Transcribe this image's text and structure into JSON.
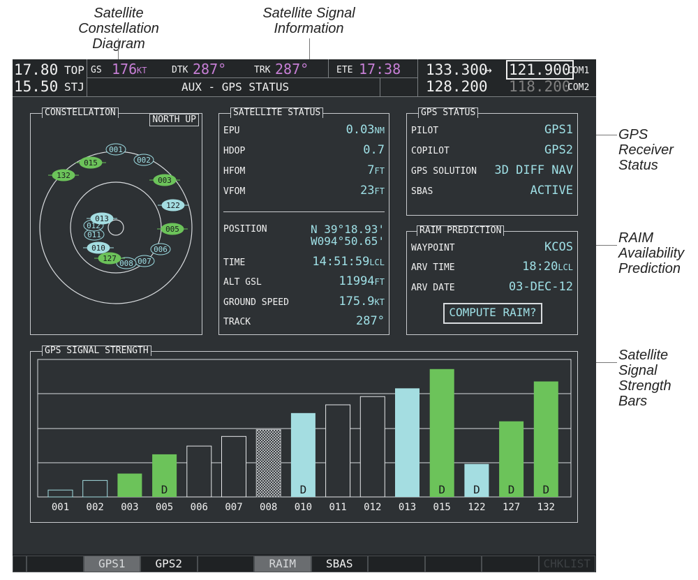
{
  "callouts": {
    "constellation": [
      "Satellite Constellation",
      "Diagram"
    ],
    "signal_info": [
      "Satellite Signal",
      "Information"
    ],
    "receiver": [
      "GPS",
      "Receiver",
      "Status"
    ],
    "raim": [
      "RAIM",
      "Availability",
      "Prediction"
    ],
    "bars": [
      "Satellite",
      "Signal",
      "Strength",
      "Bars"
    ]
  },
  "topbar": {
    "nav_freq_active": "17.80",
    "nav_freq_standby": "15.50",
    "nav_id_active": "TOP",
    "nav_id_standby": "STJ",
    "gs_label": "GS",
    "gs_value": "176",
    "gs_unit": "KT",
    "dtk_label": "DTK",
    "dtk_value": "287°",
    "trk_label": "TRK",
    "trk_value": "287°",
    "ete_label": "ETE",
    "ete_value": "17:38",
    "page_title": "AUX - GPS STATUS",
    "com_active_1": "133.300",
    "com_swap_symbol": "↔",
    "com_standby_1": "121.900",
    "com1_label": "COM1",
    "com_active_2": "128.200",
    "com_standby_2": "118.200",
    "com2_label": "COM2"
  },
  "constellation": {
    "title": "CONSTELLATION",
    "north_up": "NORTH UP",
    "satellites": [
      {
        "id": "001",
        "state": "outline"
      },
      {
        "id": "002",
        "state": "outline"
      },
      {
        "id": "003",
        "state": "green"
      },
      {
        "id": "005",
        "state": "green"
      },
      {
        "id": "006",
        "state": "outline"
      },
      {
        "id": "007",
        "state": "outline"
      },
      {
        "id": "008",
        "state": "outline"
      },
      {
        "id": "010",
        "state": "cyan"
      },
      {
        "id": "011",
        "state": "outline"
      },
      {
        "id": "012",
        "state": "outline"
      },
      {
        "id": "013",
        "state": "cyan"
      },
      {
        "id": "015",
        "state": "green"
      },
      {
        "id": "122",
        "state": "cyan"
      },
      {
        "id": "127",
        "state": "green"
      },
      {
        "id": "132",
        "state": "green"
      }
    ]
  },
  "satellite_status": {
    "title": "SATELLITE STATUS",
    "epu_label": "EPU",
    "epu_value": "0.03",
    "epu_unit": "NM",
    "hdop_label": "HDOP",
    "hdop_value": "0.7",
    "hfom_label": "HFOM",
    "hfom_value": "7",
    "hfom_unit": "FT",
    "vfom_label": "VFOM",
    "vfom_value": "23",
    "vfom_unit": "FT",
    "position_label": "POSITION",
    "position_lat": "N 39°18.93'",
    "position_lon": "W094°50.65'",
    "time_label": "TIME",
    "time_value": "14:51:59",
    "time_unit": "LCL",
    "alt_label": "ALT GSL",
    "alt_value": "11994",
    "alt_unit": "FT",
    "gs_label": "GROUND SPEED",
    "gs_value": "175.9",
    "gs_unit": "KT",
    "track_label": "TRACK",
    "track_value": "287°"
  },
  "gps_status": {
    "title": "GPS STATUS",
    "pilot_label": "PILOT",
    "pilot_value": "GPS1",
    "copilot_label": "COPILOT",
    "copilot_value": "GPS2",
    "solution_label": "GPS SOLUTION",
    "solution_value": "3D DIFF NAV",
    "sbas_label": "SBAS",
    "sbas_value": "ACTIVE"
  },
  "raim": {
    "title": "RAIM PREDICTION",
    "waypoint_label": "WAYPOINT",
    "waypoint_value": "KCOS",
    "arv_time_label": "ARV TIME",
    "arv_time_value": "18:20",
    "arv_time_unit": "LCL",
    "arv_date_label": "ARV DATE",
    "arv_date_value": "03-DEC-12",
    "compute_button": "COMPUTE RAIM?"
  },
  "signal_strength": {
    "title": "GPS SIGNAL STRENGTH",
    "marker_d": "D",
    "bars": [
      {
        "id": "001",
        "level": 0.05,
        "style": "outline-cyan",
        "d": false
      },
      {
        "id": "002",
        "level": 0.12,
        "style": "outline-cyan",
        "d": false
      },
      {
        "id": "003",
        "level": 0.17,
        "style": "green",
        "d": false
      },
      {
        "id": "005",
        "level": 0.31,
        "style": "green",
        "d": true
      },
      {
        "id": "006",
        "level": 0.37,
        "style": "outline-white",
        "d": false
      },
      {
        "id": "007",
        "level": 0.44,
        "style": "outline-white",
        "d": false
      },
      {
        "id": "008",
        "level": 0.49,
        "style": "hatched",
        "d": false
      },
      {
        "id": "010",
        "level": 0.61,
        "style": "cyan",
        "d": true
      },
      {
        "id": "011",
        "level": 0.67,
        "style": "outline-white",
        "d": false
      },
      {
        "id": "012",
        "level": 0.73,
        "style": "outline-white",
        "d": false
      },
      {
        "id": "013",
        "level": 0.79,
        "style": "cyan",
        "d": false
      },
      {
        "id": "015",
        "level": 0.93,
        "style": "green",
        "d": true
      },
      {
        "id": "122",
        "level": 0.24,
        "style": "cyan",
        "d": true
      },
      {
        "id": "127",
        "level": 0.55,
        "style": "green",
        "d": true
      },
      {
        "id": "132",
        "level": 0.84,
        "style": "green",
        "d": true
      }
    ]
  },
  "softkeys": [
    "",
    "",
    "GPS1",
    "GPS2",
    "",
    "RAIM",
    "SBAS",
    "",
    "",
    "",
    "CHKLIST"
  ],
  "colors": {
    "green": "#6cc35a",
    "cyan": "#a4dde1",
    "magenta": "#c77fd6",
    "background": "#2d3134"
  }
}
